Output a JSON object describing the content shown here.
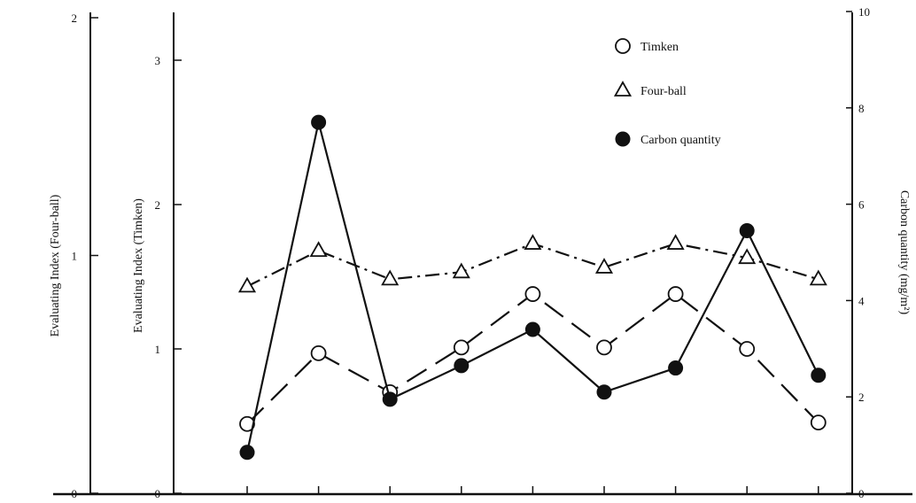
{
  "chart_data": {
    "type": "line",
    "title": "",
    "x": [
      1,
      2,
      3,
      4,
      5,
      6,
      7,
      8,
      9
    ],
    "x_tick_labels": [
      "",
      "",
      "",
      "",
      "",
      "",
      "",
      "",
      ""
    ],
    "axes": {
      "fourball": {
        "label": "Evaluating Index (Four-ball)",
        "ylim": [
          0,
          2
        ],
        "ticks": [
          "0",
          "1",
          "2"
        ]
      },
      "timken": {
        "label": "Evaluating Index (Timken)",
        "ylim": [
          0,
          3.4
        ],
        "ticks": [
          "0",
          "1",
          "2",
          "3"
        ]
      },
      "carbon": {
        "label": "Carbon quantity (mg/m²)",
        "ylim": [
          0,
          10
        ],
        "ticks": [
          "0",
          "2",
          "4",
          "6",
          "8",
          "10"
        ]
      }
    },
    "series": [
      {
        "name": "Timken",
        "axis": "timken",
        "marker": "open-circle",
        "line": "dashed",
        "values": [
          0.48,
          0.97,
          0.7,
          1.01,
          1.38,
          1.01,
          1.38,
          1.0,
          0.49
        ]
      },
      {
        "name": "Four-ball",
        "axis": "fourball",
        "marker": "open-triangle",
        "line": "dash-dot",
        "values": [
          0.87,
          1.02,
          0.9,
          0.93,
          1.05,
          0.95,
          1.05,
          0.99,
          0.9
        ]
      },
      {
        "name": "Carbon quantity",
        "axis": "carbon",
        "marker": "filled-circle",
        "line": "solid",
        "values": [
          0.85,
          7.7,
          1.95,
          2.65,
          3.4,
          2.1,
          2.6,
          5.45,
          2.45
        ]
      }
    ],
    "legend": {
      "placement": "top-right"
    },
    "grid": false
  }
}
